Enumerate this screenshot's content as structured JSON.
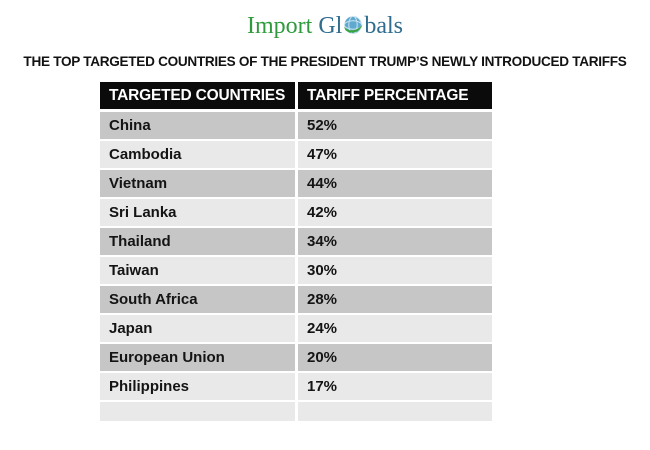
{
  "logo": {
    "import": "Import",
    "gl": "Gl",
    "bals": "bals",
    "icon": "globe-icon",
    "green": "#2f9a3e",
    "blue": "#2f6c8e"
  },
  "title": "THE TOP TARGETED COUNTRIES OF THE PRESIDENT TRUMP’S NEWLY INTRODUCED TARIFFS",
  "table": {
    "headers": [
      "TARGETED COUNTRIES",
      "TARIFF PERCENTAGE"
    ],
    "rows": [
      {
        "country": "China",
        "tariff": "52%"
      },
      {
        "country": "Cambodia",
        "tariff": "47%"
      },
      {
        "country": "Vietnam",
        "tariff": "44%"
      },
      {
        "country": "Sri Lanka",
        "tariff": "42%"
      },
      {
        "country": "Thailand",
        "tariff": "34%"
      },
      {
        "country": "Taiwan",
        "tariff": "30%"
      },
      {
        "country": "South Africa",
        "tariff": "28%"
      },
      {
        "country": "Japan",
        "tariff": "24%"
      },
      {
        "country": "European Union",
        "tariff": "20%"
      },
      {
        "country": "Philippines",
        "tariff": "17%"
      }
    ],
    "colors": {
      "header_bg": "#0b0b0b",
      "header_text": "#ffffff",
      "row_dark": "#c6c6c6",
      "row_light": "#e9e9e9"
    }
  },
  "chart_data": {
    "type": "table",
    "title": "THE TOP TARGETED COUNTRIES OF THE PRESIDENT TRUMP’S NEWLY INTRODUCED TARIFFS",
    "columns": [
      "TARGETED COUNTRIES",
      "TARIFF PERCENTAGE"
    ],
    "categories": [
      "China",
      "Cambodia",
      "Vietnam",
      "Sri Lanka",
      "Thailand",
      "Taiwan",
      "South Africa",
      "Japan",
      "European Union",
      "Philippines"
    ],
    "values": [
      52,
      47,
      44,
      42,
      34,
      30,
      28,
      24,
      20,
      17
    ],
    "unit": "%",
    "layout_hints": {
      "banded_rows": true,
      "header_style": "black",
      "grid": "white-gaps"
    }
  }
}
